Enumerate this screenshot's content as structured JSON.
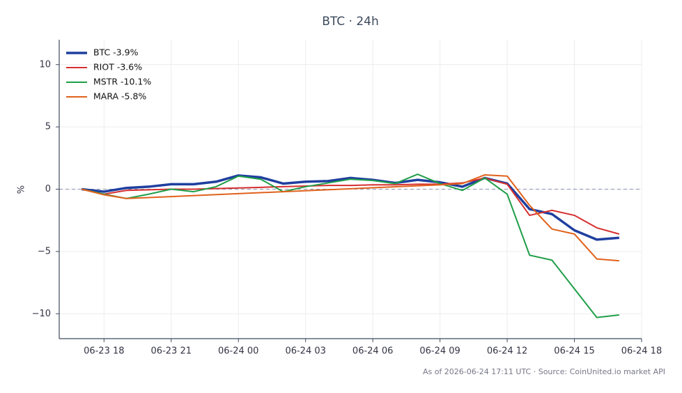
{
  "chart_data": {
    "type": "line",
    "title": "BTC · 24h",
    "y_label": "%",
    "footer": "As of 2026-06-24 17:11 UTC · Source: CoinUnited.io market API",
    "x": [
      "06-23 17",
      "06-23 18",
      "06-23 19",
      "06-23 20",
      "06-23 21",
      "06-23 22",
      "06-23 23",
      "06-24 00",
      "06-24 01",
      "06-24 02",
      "06-24 03",
      "06-24 04",
      "06-24 05",
      "06-24 06",
      "06-24 07",
      "06-24 08",
      "06-24 09",
      "06-24 10",
      "06-24 11",
      "06-24 12",
      "06-24 13",
      "06-24 14",
      "06-24 15",
      "06-24 16",
      "06-24 17"
    ],
    "xlim": [
      "06-23 16",
      "06-24 18"
    ],
    "xticks": [
      "06-23 18",
      "06-23 21",
      "06-24 00",
      "06-24 03",
      "06-24 06",
      "06-24 09",
      "06-24 12",
      "06-24 15",
      "06-24 18"
    ],
    "ylim": [
      -12,
      12
    ],
    "yticks": [
      {
        "value": -10,
        "label": "−10"
      },
      {
        "value": -5,
        "label": "−5"
      },
      0,
      5,
      10
    ],
    "grid": true,
    "zero_line": true,
    "legend": "upper left",
    "series": [
      {
        "name": "BTC -3.9%",
        "color": "#1f3f9f",
        "line_width": 3.5,
        "values": [
          0,
          -0.2,
          0.1,
          0.2,
          0.4,
          0.4,
          0.6,
          1.1,
          0.95,
          0.45,
          0.6,
          0.65,
          0.9,
          0.75,
          0.5,
          0.75,
          0.55,
          0.2,
          0.9,
          0.45,
          -1.6,
          -2.0,
          -3.3,
          -4.05,
          -3.9
        ]
      },
      {
        "name": "RIOT -3.6%",
        "color": "#d62f2f",
        "line_width": 2,
        "values": [
          0,
          -0.4,
          -0.1,
          -0.05,
          0,
          0,
          0.05,
          0.1,
          0.15,
          0.2,
          0.25,
          0.3,
          0.3,
          0.35,
          0.35,
          0.4,
          0.4,
          0.5,
          0.9,
          0.4,
          -2.1,
          -1.7,
          -2.1,
          -3.1,
          -3.6
        ]
      },
      {
        "name": "MSTR -10.1%",
        "color": "#1f9e48",
        "line_width": 2,
        "values": [
          0,
          -0.4,
          -0.75,
          -0.4,
          0,
          -0.2,
          0.2,
          1.05,
          0.8,
          -0.2,
          0.2,
          0.5,
          0.8,
          0.7,
          0.45,
          1.2,
          0.45,
          -0.1,
          0.9,
          -0.4,
          -5.3,
          -5.7,
          -8.0,
          -10.3,
          -10.1
        ]
      },
      {
        "name": "MARA -5.8%",
        "color": "#e0611b",
        "line_width": 2,
        "x": [
          "06-23 17",
          "06-23 18",
          "06-23 19",
          "06-24 09",
          "06-24 10",
          "06-24 11",
          "06-24 12",
          "06-24 13",
          "06-24 14",
          "06-24 15",
          "06-24 16",
          "06-24 17"
        ],
        "values": [
          0,
          -0.45,
          -0.75,
          0.35,
          0.45,
          1.15,
          1.05,
          -1.3,
          -3.2,
          -3.6,
          -5.6,
          -5.75
        ]
      }
    ]
  }
}
